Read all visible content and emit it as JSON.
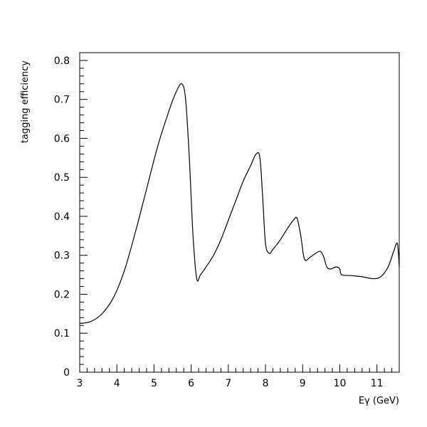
{
  "chart_data": {
    "type": "line",
    "xlabel": "Eγ (GeV)",
    "ylabel": "tagging efficiency",
    "xlim": [
      3.0,
      11.6
    ],
    "ylim": [
      0.0,
      0.82
    ],
    "xticks_major": [
      3,
      4,
      5,
      6,
      7,
      8,
      9,
      10,
      11
    ],
    "yticks_major": [
      0,
      0.1,
      0.2,
      0.3,
      0.4,
      0.5,
      0.6,
      0.7,
      0.8
    ],
    "ytick_labels": [
      "0",
      "0.1",
      "0.2",
      "0.3",
      "0.4",
      "0.5",
      "0.6",
      "0.7",
      "0.8"
    ],
    "grid": false,
    "series": [
      {
        "color": "#000000",
        "x": [
          3.0,
          3.3,
          3.6,
          3.9,
          4.2,
          4.5,
          4.8,
          5.1,
          5.4,
          5.6,
          5.75,
          5.85,
          5.95,
          6.05,
          6.15,
          6.25,
          6.4,
          6.6,
          6.8,
          7.0,
          7.2,
          7.4,
          7.6,
          7.75,
          7.85,
          7.93,
          8.0,
          8.1,
          8.2,
          8.4,
          8.6,
          8.75,
          8.85,
          8.95,
          9.05,
          9.2,
          9.35,
          9.48,
          9.57,
          9.65,
          9.75,
          9.9,
          10.0,
          10.05,
          10.3,
          10.6,
          10.9,
          11.1,
          11.3,
          11.45,
          11.55,
          11.6
        ],
        "y": [
          0.125,
          0.13,
          0.15,
          0.19,
          0.26,
          0.36,
          0.47,
          0.58,
          0.67,
          0.72,
          0.74,
          0.7,
          0.55,
          0.35,
          0.24,
          0.25,
          0.27,
          0.3,
          0.34,
          0.39,
          0.44,
          0.49,
          0.53,
          0.56,
          0.55,
          0.44,
          0.33,
          0.305,
          0.315,
          0.34,
          0.37,
          0.39,
          0.395,
          0.35,
          0.29,
          0.295,
          0.305,
          0.31,
          0.295,
          0.27,
          0.265,
          0.27,
          0.265,
          0.25,
          0.248,
          0.245,
          0.24,
          0.245,
          0.27,
          0.31,
          0.33,
          0.27
        ]
      }
    ]
  }
}
